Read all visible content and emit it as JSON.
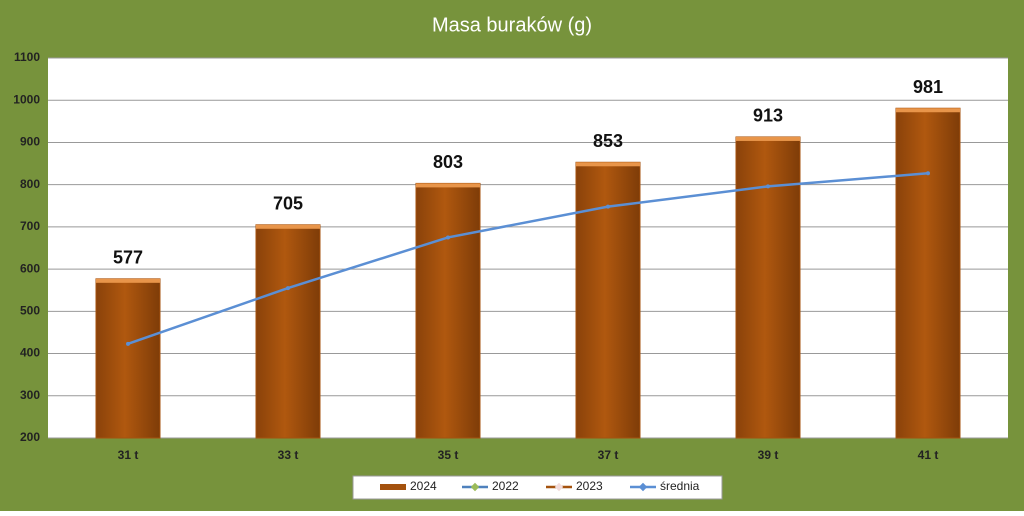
{
  "chart_data": {
    "type": "bar",
    "title": "Masa buraków (g)",
    "categories": [
      "31 t",
      "33 t",
      "35 t",
      "37 t",
      "39 t",
      "41 t"
    ],
    "series": [
      {
        "name": "2024",
        "type": "bar",
        "color": "#a4520e",
        "values": [
          577,
          705,
          803,
          853,
          913,
          981
        ]
      },
      {
        "name": "2022",
        "type": "line",
        "color": "#4f81bd",
        "marker_color": "#9bbb59",
        "values": [
          null,
          null,
          null,
          null,
          null,
          null
        ]
      },
      {
        "name": "2023",
        "type": "line",
        "color": "#a4520e",
        "marker_color": "#f2dcdb",
        "values": [
          null,
          null,
          null,
          null,
          null,
          null
        ]
      },
      {
        "name": "średnia",
        "type": "line",
        "color": "#5b8fd4",
        "marker_color": "#5b8fd4",
        "values": [
          423,
          555,
          675,
          748,
          796,
          827
        ]
      }
    ],
    "ylim": [
      200,
      1100
    ],
    "yticks": [
      200,
      300,
      400,
      500,
      600,
      700,
      800,
      900,
      1000,
      1100
    ],
    "grid": true,
    "legend": "bottom"
  }
}
